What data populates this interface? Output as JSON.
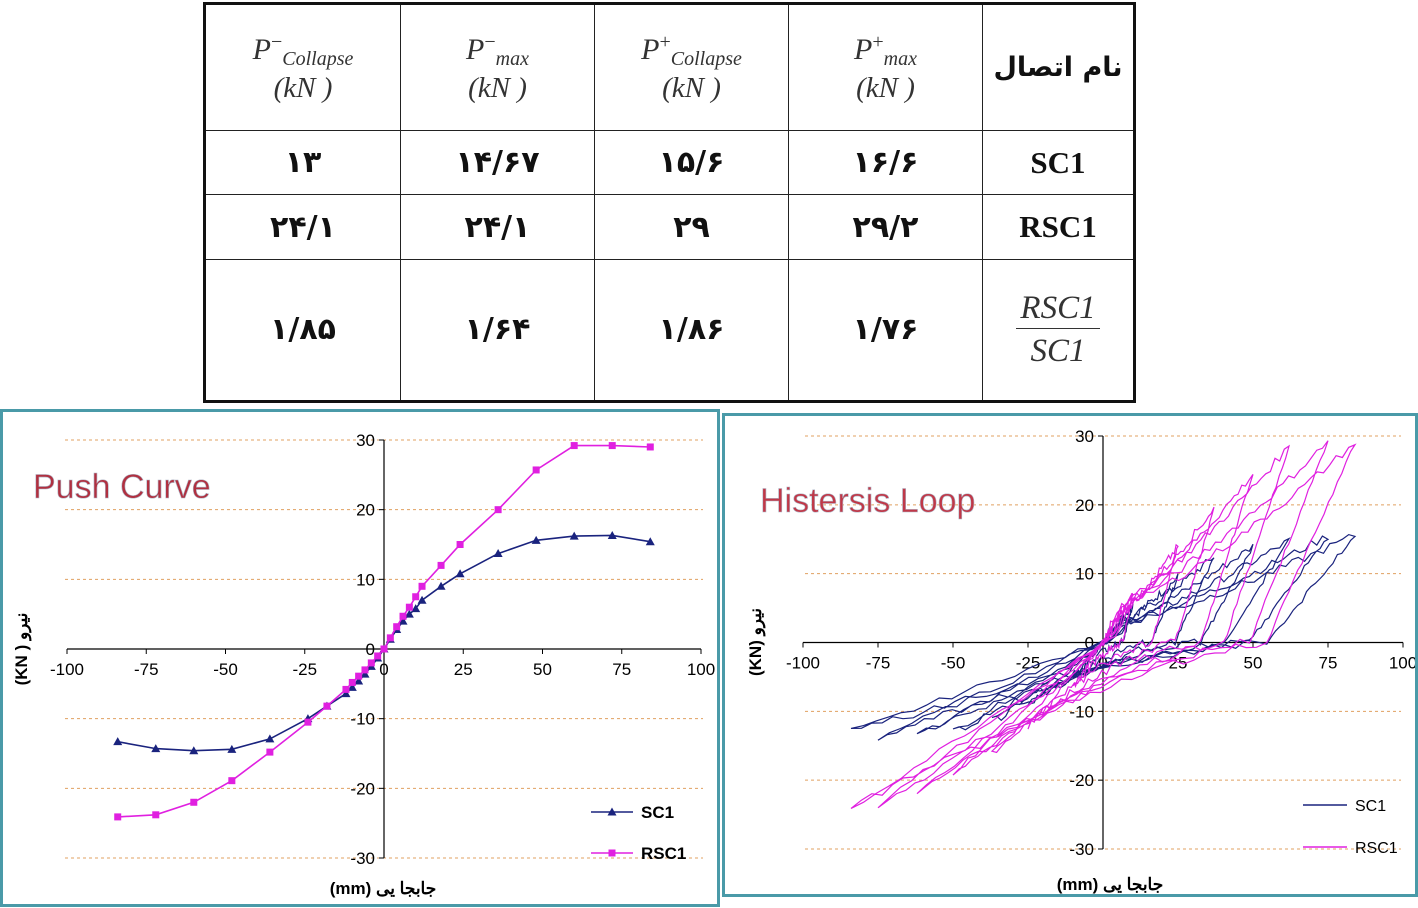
{
  "table": {
    "header": {
      "p_minus_collapse": {
        "symbol": "P",
        "sup": "−",
        "sub": "Collapse",
        "unit": "(kN )"
      },
      "p_minus_max": {
        "symbol": "P",
        "sup": "−",
        "sub": "max",
        "unit": "(kN )"
      },
      "p_plus_collapse": {
        "symbol": "P",
        "sup": "+",
        "sub": "Collapse",
        "unit": "(kN )"
      },
      "p_plus_max": {
        "symbol": "P",
        "sup": "+",
        "sub": "max",
        "unit": "(kN )"
      },
      "name": "نام اتصال"
    },
    "rows": [
      {
        "name": "SC1",
        "p_minus_collapse": "۱۳",
        "p_minus_max": "۱۴/۶۷",
        "p_plus_collapse": "۱۵/۶",
        "p_plus_max": "۱۶/۶"
      },
      {
        "name": "RSC1",
        "p_minus_collapse": "۲۴/۱",
        "p_minus_max": "۲۴/۱",
        "p_plus_collapse": "۲۹",
        "p_plus_max": "۲۹/۲"
      },
      {
        "name_numerator": "RSC1",
        "name_denominator": "SC1",
        "p_minus_collapse": "۱/۸۵",
        "p_minus_max": "۱/۶۴",
        "p_plus_collapse": "۱/۸۶",
        "p_plus_max": "۱/۷۶"
      }
    ]
  },
  "chart_data": [
    {
      "type": "line",
      "title": "Push Curve",
      "xlabel": "جابجا یی  (mm)",
      "ylabel": "نیرو  ( KN)",
      "xlim": [
        -100,
        100
      ],
      "ylim": [
        -30,
        30
      ],
      "xticks": [
        -100,
        -75,
        -50,
        -25,
        0,
        25,
        50,
        75,
        100
      ],
      "yticks": [
        -30,
        -20,
        -10,
        0,
        10,
        20,
        30
      ],
      "grid": "horizontal dashed",
      "legend_position": "bottom-right",
      "series": [
        {
          "name": "SC1",
          "color": "#1a237e",
          "marker": "triangle",
          "x": [
            -84,
            -72,
            -60,
            -48,
            -36,
            -24,
            -18,
            -12,
            -10,
            -8,
            -6,
            -4,
            -2,
            0,
            2,
            4,
            6,
            8,
            10,
            12,
            18,
            24,
            36,
            48,
            60,
            72,
            84
          ],
          "y": [
            -13.3,
            -14.3,
            -14.6,
            -14.4,
            -12.9,
            -10.0,
            -8.2,
            -6.4,
            -5.5,
            -4.6,
            -3.6,
            -2.5,
            -1.3,
            0,
            1.4,
            2.8,
            4.0,
            5.0,
            5.8,
            7.0,
            9.0,
            10.8,
            13.7,
            15.6,
            16.2,
            16.3,
            15.4
          ]
        },
        {
          "name": "RSC1",
          "color": "#e020e0",
          "marker": "square",
          "x": [
            -84,
            -72,
            -60,
            -48,
            -36,
            -24,
            -18,
            -12,
            -10,
            -8,
            -6,
            -4,
            -2,
            0,
            2,
            4,
            6,
            8,
            10,
            12,
            18,
            24,
            36,
            48,
            60,
            72,
            84
          ],
          "y": [
            -24.1,
            -23.8,
            -22.0,
            -18.9,
            -14.8,
            -10.5,
            -8.2,
            -5.8,
            -4.8,
            -3.9,
            -3.0,
            -2.0,
            -1.0,
            0,
            1.6,
            3.2,
            4.7,
            6.0,
            7.5,
            9.0,
            12.0,
            15.0,
            20.0,
            25.7,
            29.2,
            29.2,
            29.0
          ]
        }
      ]
    },
    {
      "type": "line",
      "title": "Histersis Loop",
      "xlabel": "جابجا یی (mm)",
      "ylabel": "نیرو  (KN)",
      "xlim": [
        -100,
        100
      ],
      "ylim": [
        -30,
        30
      ],
      "xticks": [
        -100,
        -75,
        -50,
        -25,
        0,
        25,
        50,
        75,
        100
      ],
      "yticks": [
        -30,
        -20,
        -10,
        0,
        10,
        20,
        30
      ],
      "grid": "horizontal dashed",
      "legend_position": "bottom-right",
      "series": [
        {
          "name": "SC1",
          "color": "#1a237e",
          "cycle_peaks": [
            {
              "dmax": 10,
              "fmax": 5.5,
              "dmin": -10,
              "fmin": -5.0
            },
            {
              "dmax": 25,
              "fmax": 9.5,
              "dmin": -25,
              "fmin": -9.0
            },
            {
              "dmax": 37,
              "fmax": 12.5,
              "dmin": -37,
              "fmin": -11.5
            },
            {
              "dmax": 50,
              "fmax": 14.0,
              "dmin": -50,
              "fmin": -13.0
            },
            {
              "dmax": 62,
              "fmax": 14.8,
              "dmin": -62,
              "fmin": -13.5
            },
            {
              "dmax": 75,
              "fmax": 15.5,
              "dmin": -75,
              "fmin": -13.8
            },
            {
              "dmax": 84,
              "fmax": 15.6,
              "dmin": -84,
              "fmin": -13.0
            }
          ]
        },
        {
          "name": "RSC1",
          "color": "#e020e0",
          "cycle_peaks": [
            {
              "dmax": 10,
              "fmax": 7.0,
              "dmin": -10,
              "fmin": -6.5
            },
            {
              "dmax": 25,
              "fmax": 14.0,
              "dmin": -25,
              "fmin": -12.0
            },
            {
              "dmax": 37,
              "fmax": 19.5,
              "dmin": -37,
              "fmin": -16.0
            },
            {
              "dmax": 50,
              "fmax": 24.5,
              "dmin": -50,
              "fmin": -19.0
            },
            {
              "dmax": 62,
              "fmax": 28.5,
              "dmin": -62,
              "fmin": -22.0
            },
            {
              "dmax": 75,
              "fmax": 29.2,
              "dmin": -75,
              "fmin": -23.5
            },
            {
              "dmax": 84,
              "fmax": 29.0,
              "dmin": -84,
              "fmin": -24.2
            }
          ]
        }
      ]
    }
  ]
}
